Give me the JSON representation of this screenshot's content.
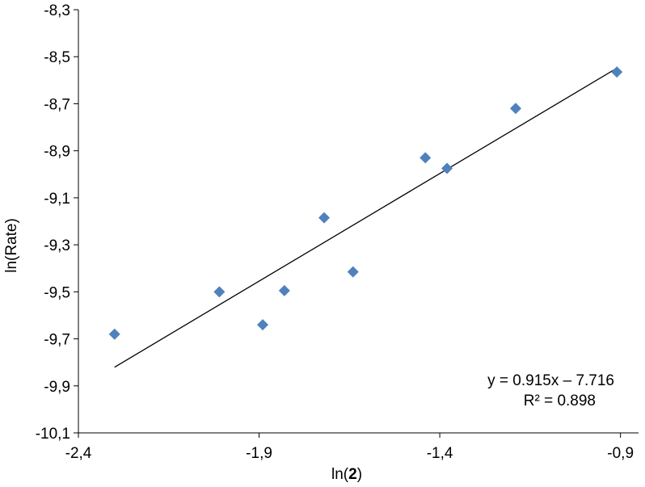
{
  "chart_data": {
    "type": "scatter",
    "title": "",
    "xlabel": {
      "prefix": "ln(",
      "bold": "2",
      "suffix": ")"
    },
    "ylabel": "ln(Rate)",
    "xlim": [
      -2.4,
      -0.85
    ],
    "ylim": [
      -10.1,
      -8.3
    ],
    "x_ticks": [
      -2.4,
      -1.9,
      -1.4,
      -0.9
    ],
    "x_tick_labels": [
      "-2,4",
      "-1,9",
      "-1,4",
      "-0,9"
    ],
    "y_ticks": [
      -8.3,
      -8.5,
      -8.7,
      -8.9,
      -9.1,
      -9.3,
      -9.5,
      -9.7,
      -9.9,
      -10.1
    ],
    "y_tick_labels": [
      "-8,3",
      "-8,5",
      "-8,7",
      "-8,9",
      "-9,1",
      "-9,3",
      "-9,5",
      "-9,7",
      "-9,9",
      "-10,1"
    ],
    "grid": false,
    "marker": "diamond",
    "marker_color": "#4f81bd",
    "series": [
      {
        "points": [
          {
            "x": -2.3,
            "y": -9.68
          },
          {
            "x": -2.01,
            "y": -9.5
          },
          {
            "x": -1.89,
            "y": -9.64
          },
          {
            "x": -1.83,
            "y": -9.495
          },
          {
            "x": -1.72,
            "y": -9.185
          },
          {
            "x": -1.64,
            "y": -9.415
          },
          {
            "x": -1.44,
            "y": -8.93
          },
          {
            "x": -1.38,
            "y": -8.975
          },
          {
            "x": -1.19,
            "y": -8.72
          },
          {
            "x": -0.91,
            "y": -8.565
          }
        ]
      }
    ],
    "trendline": {
      "slope": 0.915,
      "intercept": -7.716,
      "x_range": [
        -2.3,
        -0.91
      ],
      "color": "#000000",
      "equation_text": "y = 0.915x – 7.716",
      "r2_text": "R² = 0.898"
    }
  }
}
